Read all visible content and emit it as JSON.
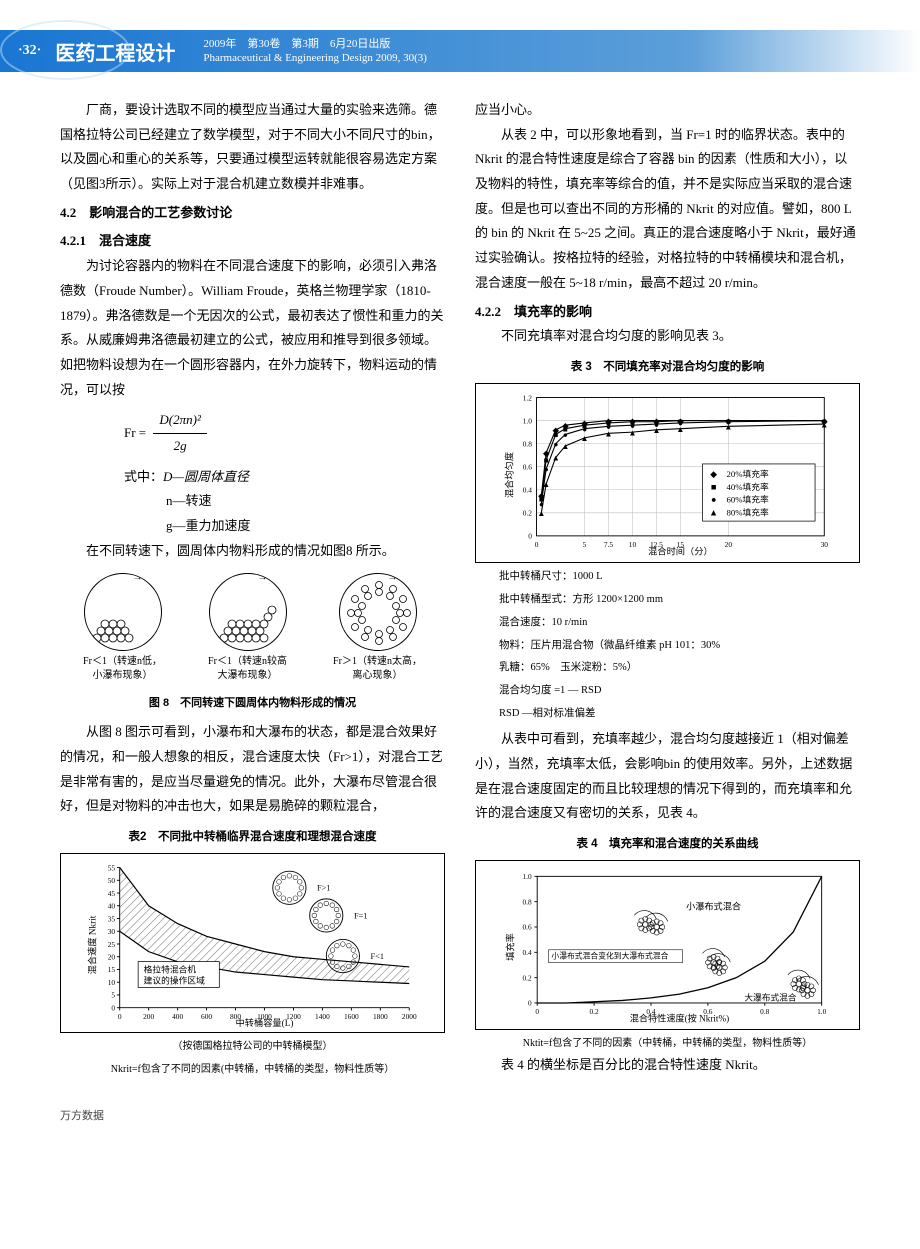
{
  "header": {
    "page": "·32·",
    "title": "医药工程设计",
    "meta1": "2009年　第30卷　第3期　6月20日出版",
    "meta2": "Pharmaceutical & Engineering Design 2009, 30(3)"
  },
  "left": {
    "p1": "厂商，要设计选取不同的模型应当通过大量的实验来选筛。德国格拉特公司已经建立了数学模型，对于不同大小不同尺寸的bin，以及圆心和重心的关系等，只要通过模型运转就能很容易选定方案（见图3所示）。实际上对于混合机建立数模并非难事。",
    "s42": "4.2　影响混合的工艺参数讨论",
    "s421": "4.2.1　混合速度",
    "p2": "为讨论容器内的物料在不同混合速度下的影响，必须引入弗洛德数（Froude Number）。William Froude，英格兰物理学家（1810-1879）。弗洛德数是一个无因次的公式，最初表达了惯性和重力的关系。从威廉姆弗洛德最初建立的公式，被应用和推导到很多领域。如把物料设想为在一个圆形容器内，在外力旋转下，物料运动的情况，可以按",
    "fr_eq_lhs": "Fr =",
    "fr_num": "D(2πn)²",
    "fr_den": "2g",
    "def_intro": "式中：",
    "def_d": "D—圆周体直径",
    "def_n": "n—转速",
    "def_g": "g—重力加速度",
    "p3": "在不同转速下，圆周体内物料形成的情况如图8 所示。",
    "fig8": {
      "a_line1": "Fr＜1（转速n低，",
      "a_line2": "小瀑布现象）",
      "b_line1": "Fr＜1（转速n较高",
      "b_line2": "大瀑布现象）",
      "c_line1": "Fr＞1（转速n太高，",
      "c_line2": "离心现象）",
      "caption": "图 8　不同转速下圆周体内物料形成的情况"
    },
    "p4": "从图 8 图示可看到，小瀑布和大瀑布的状态，都是混合效果好的情况，和一般人想象的相反，混合速度太快（Fr>1），对混合工艺是非常有害的，是应当尽量避免的情况。此外，大瀑布尽管混合很好，但是对物料的冲击也大，如果是易脆碎的颗粒混合，",
    "tbl2": {
      "caption": "表2　不同批中转桶临界混合速度和理想混合速度",
      "ylabel": "混合速度 Nkrit",
      "xlabel": "中转桶容量(L)",
      "note1": "（按德国格拉特公司的中转桶模型）",
      "note2": "Nkrit=f包含了不同的因素(中转桶，中转桶的类型，物料性质等）",
      "ytick": [
        "0",
        "5",
        "10",
        "15",
        "20",
        "25",
        "30",
        "35",
        "40",
        "45",
        "50",
        "55"
      ],
      "xtick": [
        "0",
        "200",
        "400",
        "600",
        "800",
        "1000",
        "1200",
        "1400",
        "1600",
        "1800",
        "2000"
      ],
      "ann1": "F>1",
      "ann2": "F=1",
      "ann3": "F<1",
      "box1": "格拉特混合机",
      "box2": "建议的操作区域",
      "curve1": [
        55,
        40,
        33,
        28,
        25,
        22,
        20,
        19,
        18,
        17,
        16
      ],
      "curve2": [
        30,
        22,
        18,
        16,
        14,
        13,
        12,
        11,
        10.5,
        10,
        9.5
      ],
      "colors": {
        "line": "#000",
        "hatch": "#7a7a7a"
      }
    }
  },
  "right": {
    "p1": "应当小心。",
    "p2": "从表 2 中，可以形象地看到，当 Fr=1 时的临界状态。表中的 Nkrit 的混合特性速度是综合了容器 bin 的因素（性质和大小），以及物料的特性，填充率等综合的值，并不是实际应当采取的混合速度。但是也可以查出不同的方形桶的 Nkrit 的对应值。譬如，800 L 的 bin 的 Nkrit 在 5~25 之间。真正的混合速度略小于 Nkrit，最好通过实验确认。按格拉特的经验，对格拉特的中转桶模块和混合机，混合速度一般在 5~18 r/min，最高不超过 20 r/min。",
    "s422": "4.2.2　填充率的影响",
    "p3": "不同充填率对混合均匀度的影响见表 3。",
    "tbl3": {
      "caption": "表 3　不同填充率对混合均匀度的影响",
      "ylabel": "混合均匀度",
      "xlabel": "混合时间（分）",
      "ytick": [
        "0",
        "0.2",
        "0.4",
        "0.6",
        "0.8",
        "1.0",
        "1.2"
      ],
      "xtick": [
        "0",
        "5",
        "7.5",
        "10",
        "12.5",
        "15",
        "20",
        "30"
      ],
      "legend": [
        {
          "m": "◆",
          "t": "20%填充率"
        },
        {
          "m": "■",
          "t": "40%填充率"
        },
        {
          "m": "●",
          "t": "60%填充率"
        },
        {
          "m": "▲",
          "t": "80%填充率"
        }
      ],
      "x": [
        0.5,
        1,
        2,
        3,
        5,
        7.5,
        10,
        12.5,
        15,
        20,
        30
      ],
      "s20": [
        0.35,
        0.72,
        0.92,
        0.96,
        0.98,
        1.0,
        1.0,
        1.0,
        1.0,
        1.0,
        1.0
      ],
      "s40": [
        0.32,
        0.66,
        0.88,
        0.93,
        0.96,
        0.98,
        0.99,
        0.99,
        1.0,
        1.0,
        1.0
      ],
      "s60": [
        0.28,
        0.58,
        0.8,
        0.88,
        0.93,
        0.95,
        0.96,
        0.97,
        0.98,
        0.99,
        1.0
      ],
      "s80": [
        0.2,
        0.45,
        0.68,
        0.78,
        0.85,
        0.89,
        0.9,
        0.92,
        0.93,
        0.95,
        0.97
      ],
      "colors": {
        "grid": "#bfbfbf",
        "line": "#000"
      }
    },
    "notes3": [
      "批中转桶尺寸：1000 L",
      "批中转桶型式：方形 1200×1200 mm",
      "混合速度：10 r/min",
      "物料：压片用混合物（微晶纤维素 pH 101：30%",
      "乳糖：65%　玉米淀粉：5%）",
      "混合均匀度 =1 — RSD",
      "RSD —相对标准偏差"
    ],
    "p4": "从表中可看到，充填率越少，混合均匀度越接近 1（相对偏差小），当然，充填率太低，会影响bin 的使用效率。另外，上述数据是在混合速度固定的而且比较理想的情况下得到的，而充填率和允许的混合速度又有密切的关系，见表 4。",
    "tbl4": {
      "caption": "表 4　填充率和混合速度的关系曲线",
      "ylabel": "填充率",
      "xlabel": "混合特性速度(按 Nkrit%)",
      "ytick": [
        "0",
        "0.2",
        "0.4",
        "0.6",
        "0.8",
        "1.0"
      ],
      "xtick": [
        "0",
        "0.2",
        "0.4",
        "0.6",
        "0.8",
        "1.0"
      ],
      "ann_top": "小瀑布式混合",
      "ann_mid": "小瀑布式混合变化到大瀑布式混合",
      "ann_bot": "大瀑布式混合",
      "curve": [
        [
          0,
          0
        ],
        [
          0.1,
          0
        ],
        [
          0.2,
          0.01
        ],
        [
          0.3,
          0.02
        ],
        [
          0.4,
          0.04
        ],
        [
          0.5,
          0.07
        ],
        [
          0.6,
          0.12
        ],
        [
          0.7,
          0.2
        ],
        [
          0.8,
          0.33
        ],
        [
          0.9,
          0.56
        ],
        [
          1.0,
          1.0
        ]
      ],
      "note": "Nktit=f包含了不同的因素（中转桶，中转桶的类型，物料性质等）"
    },
    "p5": "表 4 的横坐标是百分比的混合特性速度 Nkrit。"
  },
  "footer": "万方数据"
}
